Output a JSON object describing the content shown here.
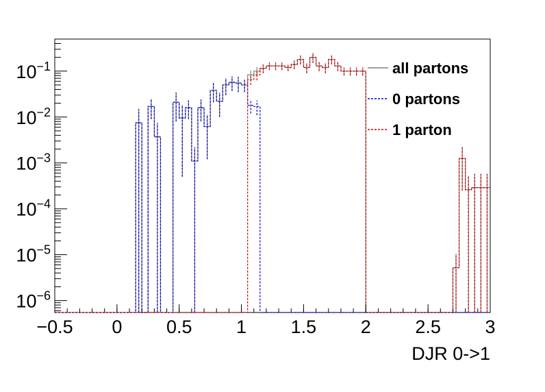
{
  "chart_data": {
    "type": "line",
    "xlabel": "DJR 0->1",
    "ylabel": "",
    "x_scale": "linear",
    "y_scale": "log",
    "xlim": [
      -0.5,
      3.0
    ],
    "ylim": [
      5.5e-07,
      0.5
    ],
    "x_ticks": [
      -0.5,
      0,
      0.5,
      1,
      1.5,
      2,
      2.5,
      3
    ],
    "x_tick_labels": [
      "−0.5",
      "0",
      "0.5",
      "1",
      "1.5",
      "2",
      "2.5",
      "3"
    ],
    "y_ticks": [
      {
        "value": 1e-06,
        "base": "10",
        "exp": "−6"
      },
      {
        "value": 1e-05,
        "base": "10",
        "exp": "−5"
      },
      {
        "value": 0.0001,
        "base": "10",
        "exp": "−4"
      },
      {
        "value": 0.001,
        "base": "10",
        "exp": "−3"
      },
      {
        "value": 0.01,
        "base": "10",
        "exp": "−2"
      },
      {
        "value": 0.1,
        "base": "10",
        "exp": "−1"
      }
    ],
    "bin_edges": [
      -0.5,
      -0.45,
      -0.4,
      -0.35,
      -0.3,
      -0.25,
      -0.2,
      -0.15,
      -0.1,
      -0.05,
      0,
      0.05,
      0.1,
      0.15,
      0.2,
      0.25,
      0.3,
      0.35,
      0.4,
      0.45,
      0.5,
      0.55,
      0.6,
      0.65,
      0.7,
      0.75,
      0.8,
      0.85,
      0.9,
      0.95,
      1.0,
      1.05,
      1.1,
      1.15,
      1.2,
      1.25,
      1.3,
      1.35,
      1.4,
      1.45,
      1.5,
      1.55,
      1.6,
      1.65,
      1.7,
      1.75,
      1.8,
      1.85,
      1.9,
      1.95,
      2.0,
      2.05,
      2.1,
      2.15,
      2.2,
      2.25,
      2.3,
      2.35,
      2.4,
      2.45,
      2.5,
      2.55,
      2.6,
      2.65,
      2.7,
      2.75,
      2.8,
      2.85,
      2.9,
      2.95,
      3.0
    ],
    "series": [
      {
        "name": "all partons",
        "color": "#808080",
        "style": "solid",
        "values": [
          0,
          0,
          0,
          0,
          0,
          0,
          0,
          0,
          0,
          0,
          0,
          0,
          0,
          0.0075,
          0,
          0.017,
          0.0037,
          0,
          0,
          0.021,
          0.0095,
          0.016,
          0.0011,
          0.016,
          0.0062,
          0.038,
          0.022,
          0.05,
          0.057,
          0.055,
          0.05,
          0.083,
          0.1,
          0.115,
          0.13,
          0.13,
          0.13,
          0.12,
          0.14,
          0.18,
          0.12,
          0.2,
          0.13,
          0.12,
          0.18,
          0.13,
          0.1,
          0.1,
          0.1,
          0.1,
          0,
          0,
          0,
          0,
          0,
          0,
          0,
          0,
          0,
          0,
          0,
          0,
          0,
          0,
          5.2e-06,
          0.00125,
          0.00026,
          0.00029,
          0.00029,
          0.00029
        ],
        "errors": [
          0,
          0,
          0,
          0,
          0,
          0,
          0,
          0,
          0,
          0,
          0,
          0,
          0,
          0.0075,
          0,
          0.008,
          0.0037,
          0,
          0,
          0.013,
          0.009,
          0.007,
          0.0011,
          0.008,
          0.005,
          0.017,
          0.012,
          0.02,
          0.02,
          0.02,
          0.015,
          0.02,
          0.022,
          0.025,
          0.025,
          0.025,
          0.025,
          0.02,
          0.03,
          0.04,
          0.03,
          0.05,
          0.03,
          0.03,
          0.04,
          0.03,
          0.02,
          0.02,
          0.02,
          0.02,
          0,
          0,
          0,
          0,
          0,
          0,
          0,
          0,
          0,
          0,
          0,
          0,
          0,
          0,
          5.2e-06,
          0.001,
          0.00026,
          0.00029,
          0.00029,
          0.00029
        ]
      },
      {
        "name": "0 partons",
        "color": "#0000cc",
        "style": "dashed",
        "values": [
          0,
          0,
          0,
          0,
          0,
          0,
          0,
          0,
          0,
          0,
          0,
          0,
          0,
          0.0075,
          0,
          0.017,
          0.0037,
          0,
          0,
          0.021,
          0.0095,
          0.016,
          0.0011,
          0.016,
          0.0062,
          0.038,
          0.022,
          0.05,
          0.057,
          0.055,
          0.05,
          0.018,
          0.017,
          0,
          0,
          0,
          0,
          0,
          0,
          0,
          0,
          0,
          0,
          0,
          0,
          0,
          0,
          0,
          0,
          0,
          0,
          0,
          0,
          0,
          0,
          0,
          0,
          0,
          0,
          0,
          0,
          0,
          0,
          0,
          0,
          0,
          0,
          0,
          0,
          0
        ],
        "errors": [
          0,
          0,
          0,
          0,
          0,
          0,
          0,
          0,
          0,
          0,
          0,
          0,
          0,
          0.0075,
          0,
          0.008,
          0.0037,
          0,
          0,
          0.013,
          0.009,
          0.007,
          0.0011,
          0.008,
          0.005,
          0.017,
          0.012,
          0.02,
          0.02,
          0.02,
          0.015,
          0.006,
          0.006,
          0,
          0,
          0,
          0,
          0,
          0,
          0,
          0,
          0,
          0,
          0,
          0,
          0,
          0,
          0,
          0,
          0,
          0,
          0,
          0,
          0,
          0,
          0,
          0,
          0,
          0,
          0,
          0,
          0,
          0,
          0,
          0,
          0,
          0,
          0,
          0,
          0
        ]
      },
      {
        "name": "1 parton",
        "color": "#cc0000",
        "style": "dashed",
        "values": [
          0,
          0,
          0,
          0,
          0,
          0,
          0,
          0,
          0,
          0,
          0,
          0,
          0,
          0,
          0,
          0,
          0,
          0,
          0,
          0,
          0,
          0,
          0,
          0,
          0,
          0,
          0,
          0,
          0,
          0,
          0,
          0.065,
          0.083,
          0.115,
          0.13,
          0.13,
          0.13,
          0.12,
          0.14,
          0.18,
          0.12,
          0.2,
          0.13,
          0.12,
          0.18,
          0.13,
          0.1,
          0.1,
          0.1,
          0.1,
          0,
          0,
          0,
          0,
          0,
          0,
          0,
          0,
          0,
          0,
          0,
          0,
          0,
          0,
          5.2e-06,
          0.00125,
          0.00026,
          0.00029,
          0.00029,
          0.00029
        ],
        "errors": [
          0,
          0,
          0,
          0,
          0,
          0,
          0,
          0,
          0,
          0,
          0,
          0,
          0,
          0,
          0,
          0,
          0,
          0,
          0,
          0,
          0,
          0,
          0,
          0,
          0,
          0,
          0,
          0,
          0,
          0,
          0,
          0.015,
          0.02,
          0.025,
          0.025,
          0.025,
          0.025,
          0.02,
          0.03,
          0.04,
          0.03,
          0.05,
          0.03,
          0.03,
          0.04,
          0.03,
          0.02,
          0.02,
          0.02,
          0.02,
          0,
          0,
          0,
          0,
          0,
          0,
          0,
          0,
          0,
          0,
          0,
          0,
          0,
          0,
          5.2e-06,
          0.001,
          0.00026,
          0.00029,
          0.00029,
          0.00029
        ]
      }
    ],
    "legend": {
      "position": "top-right",
      "entries": [
        {
          "label": "all partons",
          "color": "#808080",
          "style": "solid"
        },
        {
          "label": "0 partons",
          "color": "#0000cc",
          "style": "dashed"
        },
        {
          "label": "1 parton",
          "color": "#cc0000",
          "style": "dashed"
        }
      ]
    }
  }
}
